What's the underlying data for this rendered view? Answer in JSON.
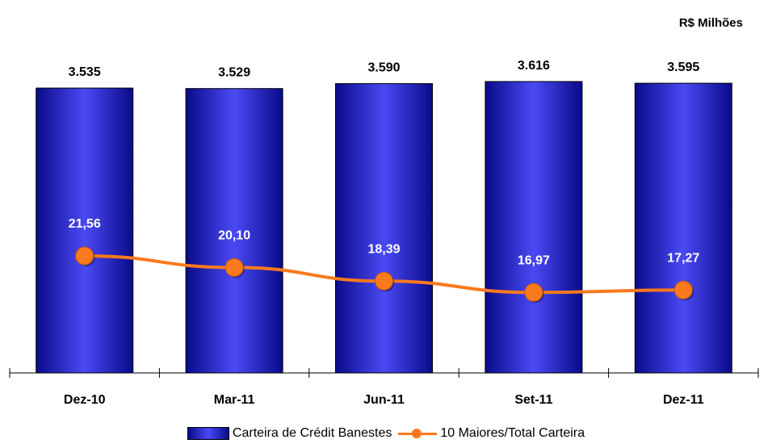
{
  "unit_label": "R$ Milhões",
  "colors": {
    "bar_center": "#4a4af5",
    "bar_edge": "#0a0a8a",
    "line": "#f97a1c",
    "marker": "#f97a1c",
    "bar_label": "#000000",
    "line_label": "#ffffff"
  },
  "legend": {
    "bar_label": "Carteira de Crédit Banestes",
    "line_label": "10 Maiores/Total Carteira"
  },
  "chart_data": {
    "type": "bar",
    "categories": [
      "Dez-10",
      "Mar-11",
      "Jun-11",
      "Set-11",
      "Dez-11"
    ],
    "series": [
      {
        "name": "Carteira de Crédit Banestes",
        "type": "bar",
        "values": [
          3535,
          3529,
          3590,
          3616,
          3595
        ],
        "labels": [
          "3.535",
          "3.529",
          "3.590",
          "3.616",
          "3.595"
        ]
      },
      {
        "name": "10 Maiores/Total Carteira",
        "type": "line",
        "values": [
          21.56,
          20.1,
          18.39,
          16.97,
          17.27
        ],
        "labels": [
          "21,56",
          "20,10",
          "18,39",
          "16,97",
          "17,27"
        ]
      }
    ],
    "legend_position": "bottom"
  }
}
